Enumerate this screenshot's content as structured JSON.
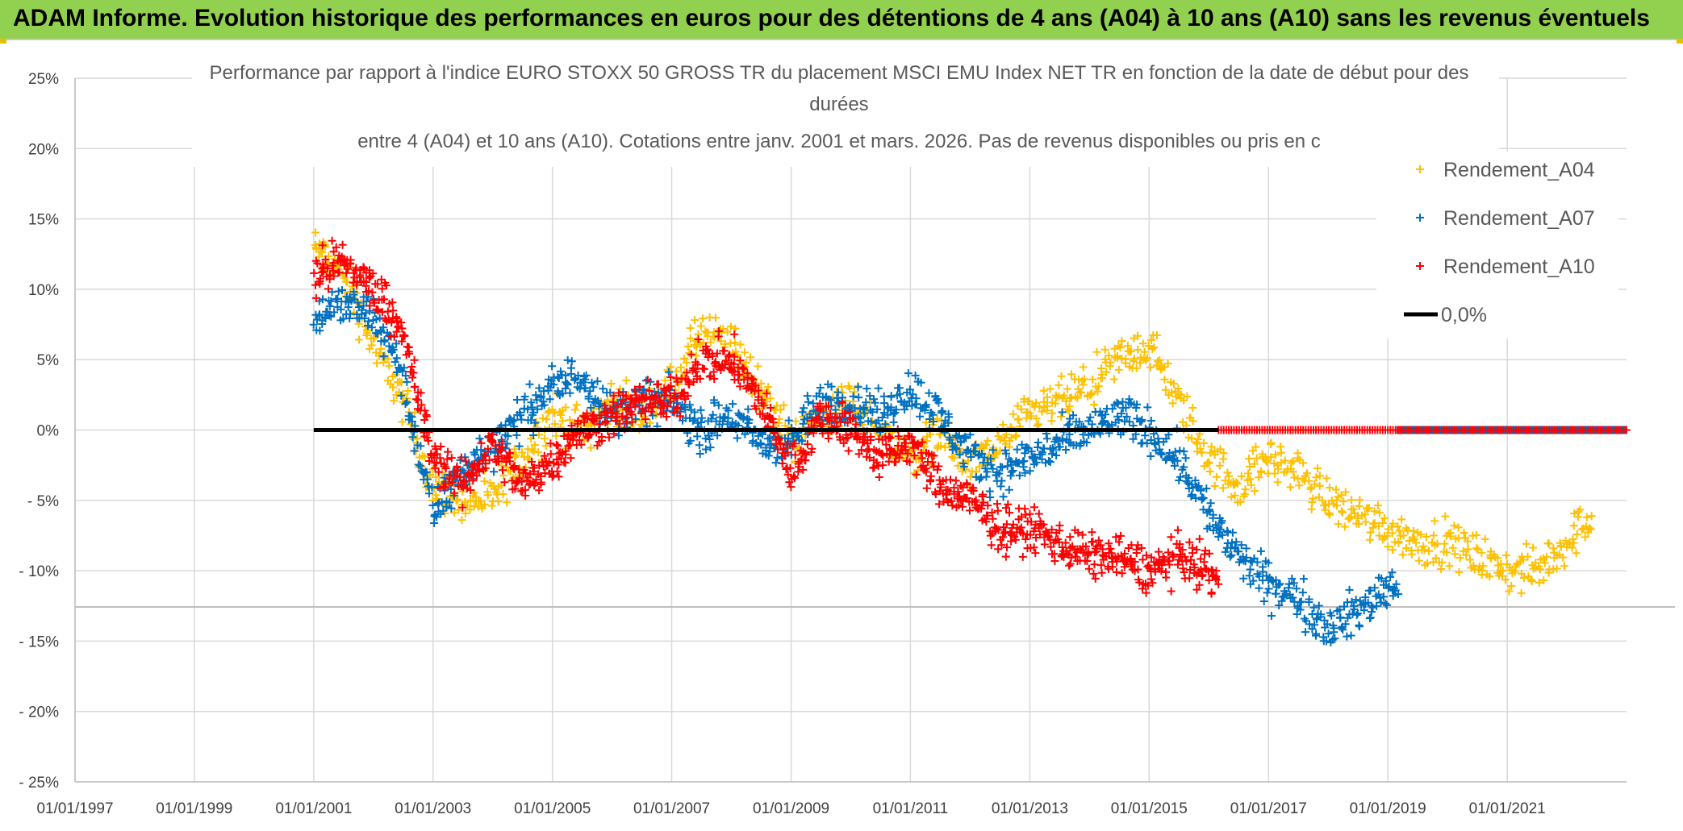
{
  "header": {
    "title": "ADAM Informe. Evolution historique des performances en euros pour des détentions de 4 ans (A04) à 10 ans (A10) sans les revenus éventuels"
  },
  "colors": {
    "a04": "#ffc000",
    "a07": "#0070c0",
    "a10": "#ff0000",
    "zero": "#000000",
    "banner": "#92d050",
    "grid": "#d9d9d9"
  },
  "chart_data": {
    "type": "scatter",
    "title_lines": [
      "Performance  par rapport à l'indice EURO STOXX 50 GROSS TR  du placement MSCI EMU Index NET TR en fonction de la date de début pour des",
      "durées",
      "entre 4 (A04) et 10 ans (A10). Cotations entre janv. 2001 et mars. 2026. Pas de revenus disponibles ou pris en c"
    ],
    "x_axis": {
      "type": "date",
      "min": "1997-01-01",
      "max": "2023-01-01",
      "tick_labels": [
        "01/01/1997",
        "01/01/1999",
        "01/01/2001",
        "01/01/2003",
        "01/01/2005",
        "01/01/2007",
        "01/01/2009",
        "01/01/2011",
        "01/01/2013",
        "01/01/2015",
        "01/01/2017",
        "01/01/2019",
        "01/01/2021"
      ],
      "gridlines_every_years": 2
    },
    "y_axis": {
      "min": -25,
      "max": 25,
      "unit": "%",
      "tick_values": [
        25,
        20,
        15,
        10,
        5,
        0,
        -5,
        -10,
        -15,
        -20,
        -25
      ],
      "tick_labels": [
        "25%",
        "20%",
        "15%",
        "10%",
        "5%",
        "0%",
        "- 5%",
        "- 10%",
        "- 15%",
        "- 20%",
        "- 25%"
      ]
    },
    "grid": true,
    "legend": {
      "placement": "top-right",
      "entries": [
        "Rendement_A04",
        "Rendement_A07",
        "Rendement_A10",
        "0,0%"
      ]
    },
    "marker": "+",
    "series": [
      {
        "name": "Rendement_A04",
        "color": "#ffc000",
        "range": [
          "2001-01-01",
          "2022-06-01"
        ],
        "points": [
          [
            "2001-01-01",
            13
          ],
          [
            "2001-07-01",
            11
          ],
          [
            "2002-01-01",
            6
          ],
          [
            "2002-06-01",
            3
          ],
          [
            "2003-01-01",
            -4
          ],
          [
            "2003-07-01",
            -5
          ],
          [
            "2004-01-01",
            -5
          ],
          [
            "2004-07-01",
            -2
          ],
          [
            "2005-01-01",
            1
          ],
          [
            "2005-07-01",
            0
          ],
          [
            "2006-01-01",
            2
          ],
          [
            "2006-07-01",
            1
          ],
          [
            "2007-01-01",
            3
          ],
          [
            "2007-07-01",
            7
          ],
          [
            "2008-01-01",
            6
          ],
          [
            "2008-07-01",
            3
          ],
          [
            "2009-01-01",
            -1
          ],
          [
            "2009-07-01",
            1
          ],
          [
            "2010-01-01",
            2
          ],
          [
            "2010-07-01",
            0
          ],
          [
            "2011-01-01",
            -2
          ],
          [
            "2011-07-01",
            0
          ],
          [
            "2012-01-01",
            -3
          ],
          [
            "2012-07-01",
            -1
          ],
          [
            "2013-01-01",
            1
          ],
          [
            "2013-07-01",
            2
          ],
          [
            "2014-01-01",
            3
          ],
          [
            "2014-07-01",
            5
          ],
          [
            "2015-01-01",
            6
          ],
          [
            "2015-07-01",
            2
          ],
          [
            "2016-01-01",
            -2
          ],
          [
            "2016-07-01",
            -4
          ],
          [
            "2017-01-01",
            -2
          ],
          [
            "2017-07-01",
            -3
          ],
          [
            "2018-01-01",
            -5
          ],
          [
            "2018-07-01",
            -6
          ],
          [
            "2019-01-01",
            -7
          ],
          [
            "2019-07-01",
            -8
          ],
          [
            "2020-01-01",
            -8
          ],
          [
            "2020-07-01",
            -9
          ],
          [
            "2021-01-01",
            -10
          ],
          [
            "2021-07-01",
            -10
          ],
          [
            "2022-01-01",
            -8
          ],
          [
            "2022-06-01",
            -6
          ]
        ]
      },
      {
        "name": "Rendement_A07",
        "color": "#0070c0",
        "range": [
          "2001-01-01",
          "2019-03-01"
        ],
        "points": [
          [
            "2001-01-01",
            8
          ],
          [
            "2001-07-01",
            9
          ],
          [
            "2002-01-01",
            8
          ],
          [
            "2002-06-01",
            5
          ],
          [
            "2003-01-01",
            -6
          ],
          [
            "2003-07-01",
            -3
          ],
          [
            "2004-01-01",
            -1
          ],
          [
            "2004-07-01",
            1
          ],
          [
            "2005-01-01",
            3
          ],
          [
            "2005-07-01",
            4
          ],
          [
            "2006-01-01",
            1
          ],
          [
            "2006-07-01",
            2
          ],
          [
            "2007-01-01",
            2
          ],
          [
            "2007-07-01",
            0
          ],
          [
            "2008-01-01",
            1
          ],
          [
            "2008-07-01",
            -1
          ],
          [
            "2009-01-01",
            -1
          ],
          [
            "2009-07-01",
            2
          ],
          [
            "2010-01-01",
            2
          ],
          [
            "2010-07-01",
            1
          ],
          [
            "2011-01-01",
            3
          ],
          [
            "2011-07-01",
            1
          ],
          [
            "2012-01-01",
            -2
          ],
          [
            "2012-07-01",
            -3
          ],
          [
            "2013-01-01",
            -2
          ],
          [
            "2013-07-01",
            -1
          ],
          [
            "2014-01-01",
            0
          ],
          [
            "2014-07-01",
            1
          ],
          [
            "2015-01-01",
            0
          ],
          [
            "2015-07-01",
            -2
          ],
          [
            "2016-01-01",
            -6
          ],
          [
            "2016-07-01",
            -9
          ],
          [
            "2017-01-01",
            -11
          ],
          [
            "2017-07-01",
            -12
          ],
          [
            "2018-01-01",
            -14
          ],
          [
            "2018-07-01",
            -13
          ],
          [
            "2019-01-01",
            -11
          ],
          [
            "2019-03-01",
            -11
          ]
        ]
      },
      {
        "name": "Rendement_A10",
        "color": "#ff0000",
        "range": [
          "2001-01-01",
          "2016-03-01"
        ],
        "points": [
          [
            "2001-01-01",
            11
          ],
          [
            "2001-07-01",
            12
          ],
          [
            "2002-01-01",
            10
          ],
          [
            "2002-06-01",
            8
          ],
          [
            "2003-01-01",
            -2
          ],
          [
            "2003-07-01",
            -4
          ],
          [
            "2004-01-01",
            -1
          ],
          [
            "2004-07-01",
            -4
          ],
          [
            "2005-01-01",
            -2
          ],
          [
            "2005-07-01",
            0
          ],
          [
            "2006-01-01",
            1
          ],
          [
            "2006-07-01",
            2
          ],
          [
            "2007-01-01",
            2
          ],
          [
            "2007-07-01",
            5
          ],
          [
            "2008-01-01",
            5
          ],
          [
            "2008-07-01",
            2
          ],
          [
            "2009-01-01",
            -3
          ],
          [
            "2009-07-01",
            1
          ],
          [
            "2010-01-01",
            0
          ],
          [
            "2010-07-01",
            -2
          ],
          [
            "2011-01-01",
            -1
          ],
          [
            "2011-07-01",
            -4
          ],
          [
            "2012-01-01",
            -5
          ],
          [
            "2012-07-01",
            -7
          ],
          [
            "2013-01-01",
            -7
          ],
          [
            "2013-07-01",
            -8
          ],
          [
            "2014-01-01",
            -9
          ],
          [
            "2014-07-01",
            -9
          ],
          [
            "2015-01-01",
            -10
          ],
          [
            "2015-07-01",
            -9
          ],
          [
            "2016-01-01",
            -10
          ],
          [
            "2016-03-01",
            -11
          ]
        ]
      },
      {
        "name": "0,0%",
        "color": "#000000",
        "type": "line",
        "points": [
          [
            "2001-01-01",
            0
          ],
          [
            "2022-12-31",
            0
          ]
        ]
      }
    ],
    "notes": "After each series ends, markers lie at 0% up to the last date"
  }
}
